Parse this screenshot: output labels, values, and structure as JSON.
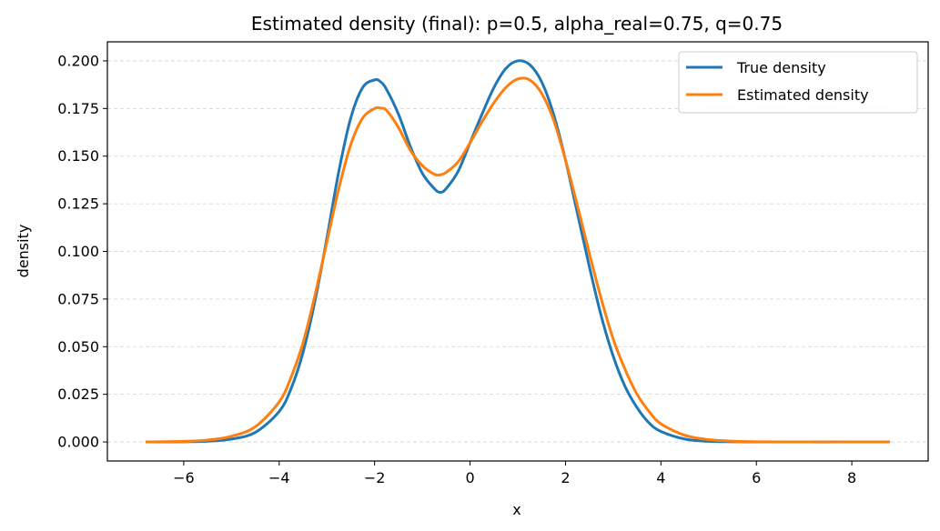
{
  "chart_data": {
    "type": "line",
    "title": "Estimated density (final): p=0.5, alpha_real=0.75, q=0.75",
    "xlabel": "x",
    "ylabel": "density",
    "xlim": [
      -7.6,
      9.6
    ],
    "ylim": [
      -0.01,
      0.21
    ],
    "xticks": [
      -6,
      -4,
      -2,
      0,
      2,
      4,
      6,
      8
    ],
    "xtick_labels": [
      "−6",
      "−4",
      "−2",
      "0",
      "2",
      "4",
      "6",
      "8"
    ],
    "yticks": [
      0.0,
      0.025,
      0.05,
      0.075,
      0.1,
      0.125,
      0.15,
      0.175,
      0.2
    ],
    "ytick_labels": [
      "0.000",
      "0.025",
      "0.050",
      "0.075",
      "0.100",
      "0.125",
      "0.150",
      "0.175",
      "0.200"
    ],
    "grid": "horizontal dashed",
    "legend_position": "top-right",
    "x": [
      -6.8,
      -6.0,
      -5.5,
      -5.0,
      -4.5,
      -4.0,
      -3.75,
      -3.5,
      -3.25,
      -3.0,
      -2.75,
      -2.5,
      -2.25,
      -2.0,
      -1.875,
      -1.75,
      -1.5,
      -1.25,
      -1.0,
      -0.75,
      -0.625,
      -0.5,
      -0.25,
      0.0,
      0.25,
      0.5,
      0.75,
      1.0,
      1.25,
      1.5,
      1.75,
      2.0,
      2.25,
      2.5,
      2.75,
      3.0,
      3.25,
      3.5,
      3.75,
      4.0,
      4.5,
      5.0,
      5.5,
      6.0,
      7.0,
      8.0,
      8.8
    ],
    "series": [
      {
        "name": "True density",
        "color": "#1f77b4",
        "values": [
          0.0,
          0.0001,
          0.0004,
          0.0015,
          0.005,
          0.016,
          0.028,
          0.047,
          0.074,
          0.107,
          0.142,
          0.17,
          0.186,
          0.19,
          0.189,
          0.185,
          0.172,
          0.155,
          0.141,
          0.133,
          0.131,
          0.133,
          0.142,
          0.157,
          0.172,
          0.186,
          0.196,
          0.2,
          0.198,
          0.189,
          0.172,
          0.148,
          0.12,
          0.092,
          0.066,
          0.045,
          0.029,
          0.018,
          0.01,
          0.0055,
          0.0015,
          0.0003,
          0.0001,
          0.0,
          0.0,
          0.0,
          0.0
        ]
      },
      {
        "name": "Estimated density",
        "color": "#ff7f0e",
        "values": [
          0.0,
          0.0003,
          0.001,
          0.003,
          0.008,
          0.021,
          0.034,
          0.052,
          0.077,
          0.105,
          0.133,
          0.156,
          0.17,
          0.175,
          0.1752,
          0.174,
          0.165,
          0.153,
          0.145,
          0.1405,
          0.1402,
          0.1415,
          0.147,
          0.157,
          0.168,
          0.178,
          0.186,
          0.1905,
          0.19,
          0.183,
          0.169,
          0.148,
          0.124,
          0.099,
          0.075,
          0.054,
          0.038,
          0.025,
          0.016,
          0.0095,
          0.0035,
          0.0012,
          0.0004,
          0.0001,
          0.0,
          0.0,
          0.0
        ]
      }
    ]
  }
}
